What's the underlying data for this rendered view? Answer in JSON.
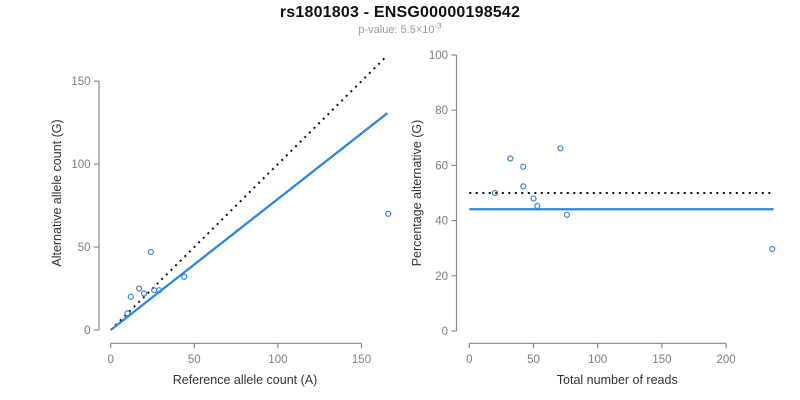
{
  "header": {
    "title": "rs1801803 - ENSG00000198542",
    "subtitle_prefix": "p-value: 5.5×10",
    "subtitle_exponent": "-3"
  },
  "colors": {
    "title": "#111111",
    "subtitle": "#999999",
    "axis": "#8a8a8a",
    "tick_label": "#7d7d7d",
    "axis_title": "#333333",
    "points": "#3d87cc",
    "background": "#ffffff"
  },
  "chart_data": [
    {
      "type": "scatter",
      "panel": "left",
      "xlabel": "Reference allele count (A)",
      "ylabel": "Alternative allele count (G)",
      "xlim": [
        0,
        168
      ],
      "ylim": [
        0,
        168
      ],
      "xticks": [
        0,
        50,
        100,
        150
      ],
      "yticks": [
        0,
        50,
        100,
        150
      ],
      "grid": false,
      "legend": "none",
      "points": [
        [
          10,
          10
        ],
        [
          12,
          20
        ],
        [
          17,
          25
        ],
        [
          20,
          22
        ],
        [
          24,
          47
        ],
        [
          26,
          24
        ],
        [
          29,
          24
        ],
        [
          44,
          32
        ],
        [
          166,
          70
        ]
      ],
      "lines": [
        {
          "name": "identity-line",
          "style": "dotted",
          "color": "#111111",
          "slope": 1,
          "intercept": 0
        },
        {
          "name": "regression-line",
          "style": "solid",
          "color": "#2E86DE",
          "slope": 0.79,
          "intercept": 0
        }
      ]
    },
    {
      "type": "scatter",
      "panel": "right",
      "xlabel": "Total number of reads",
      "ylabel": "Percentage alternative (G)",
      "xlim": [
        0,
        238
      ],
      "ylim": [
        0,
        100
      ],
      "xticks": [
        0,
        50,
        100,
        150,
        200
      ],
      "yticks": [
        0,
        20,
        40,
        60,
        80,
        100
      ],
      "grid": false,
      "legend": "none",
      "points": [
        [
          20,
          50
        ],
        [
          32,
          62.5
        ],
        [
          42,
          59.5
        ],
        [
          42,
          52.4
        ],
        [
          71,
          66.2
        ],
        [
          50,
          48
        ],
        [
          53,
          45.3
        ],
        [
          76,
          42.1
        ],
        [
          236,
          29.7
        ]
      ],
      "lines": [
        {
          "name": "expected-percentage-line",
          "style": "dotted",
          "color": "#111111",
          "value": 50
        },
        {
          "name": "observed-percentage-line",
          "style": "solid",
          "color": "#2E86DE",
          "value": 44.1
        }
      ]
    }
  ]
}
